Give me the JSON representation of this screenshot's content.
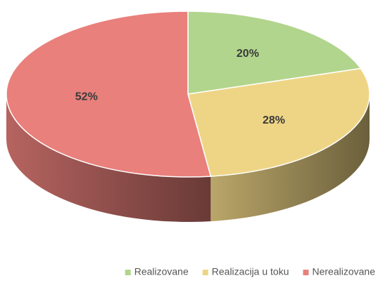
{
  "chart_data": {
    "type": "pie",
    "three_d": true,
    "categories": [
      "Realizovane",
      "Realizacija u toku",
      "Nerealizovane"
    ],
    "values": [
      20,
      28,
      52
    ],
    "value_labels": [
      "20%",
      "28%",
      "52%"
    ],
    "colors": [
      "#b1d58c",
      "#eed586",
      "#e9807b"
    ],
    "legend": "bottom"
  }
}
